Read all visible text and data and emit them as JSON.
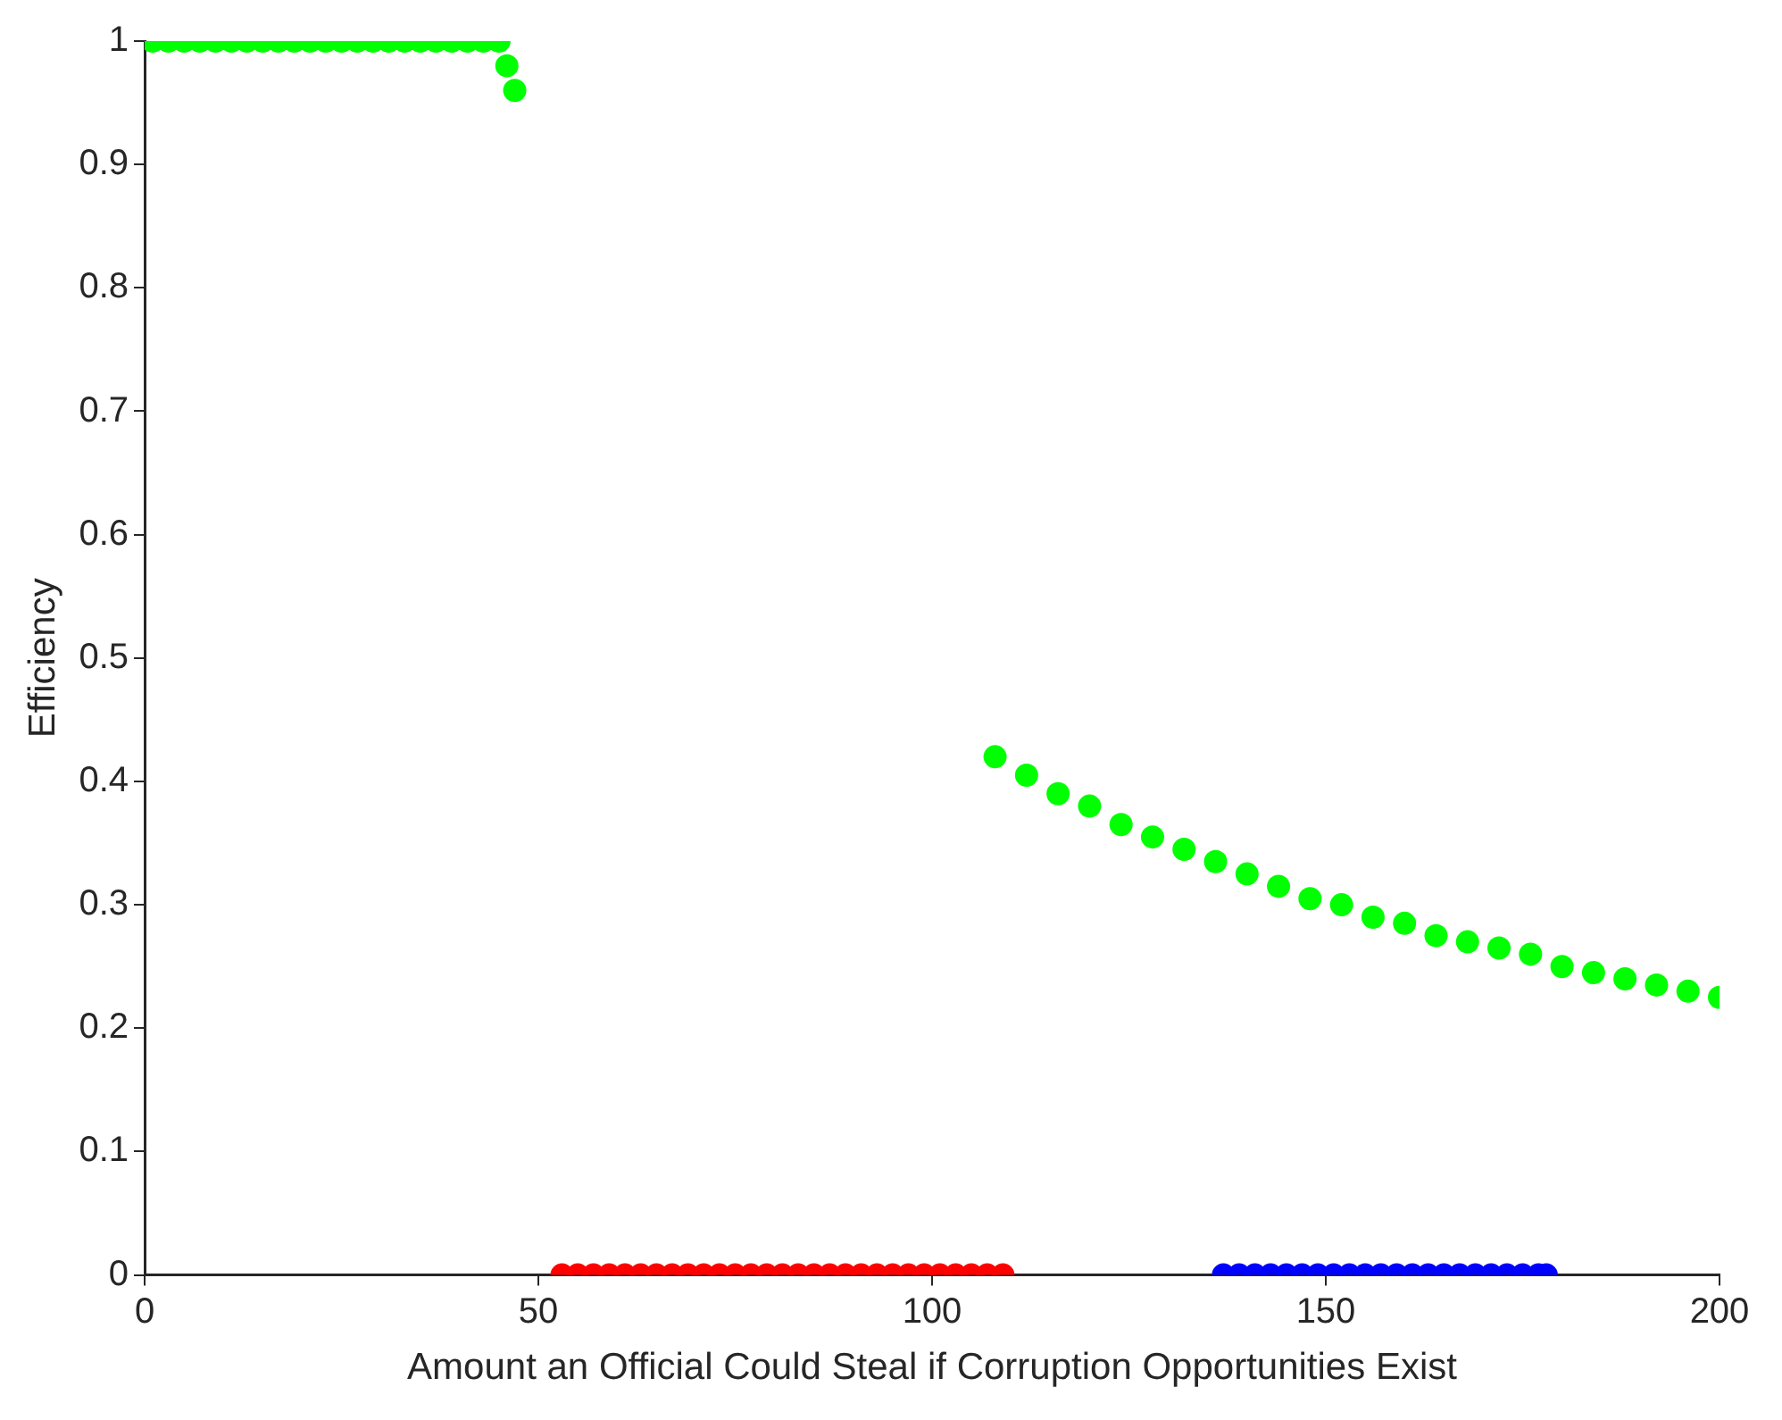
{
  "chart_data": {
    "type": "scatter",
    "xlabel": "Amount an Official Could Steal if Corruption Opportunities Exist",
    "ylabel": "Efficiency",
    "xlim": [
      0,
      200
    ],
    "xticks": [
      0,
      50,
      100,
      150,
      200
    ],
    "ylim": [
      0,
      1
    ],
    "yticks": [
      0,
      0.1,
      0.2,
      0.3,
      0.4,
      0.5,
      0.6,
      0.7,
      0.8,
      0.9,
      1
    ],
    "grid": false,
    "legend": false,
    "marker": "circle",
    "series": [
      {
        "color": "#00ff00",
        "x": [
          1,
          3,
          5,
          7,
          9,
          11,
          13,
          15,
          17,
          19,
          21,
          23,
          25,
          27,
          29,
          31,
          33,
          35,
          37,
          39,
          41,
          43,
          45,
          46,
          47,
          108,
          112,
          116,
          120,
          124,
          128,
          132,
          136,
          140,
          144,
          148,
          152,
          156,
          160,
          164,
          168,
          172,
          176,
          180,
          184,
          188,
          192,
          196,
          200
        ],
        "values": [
          1,
          1,
          1,
          1,
          1,
          1,
          1,
          1,
          1,
          1,
          1,
          1,
          1,
          1,
          1,
          1,
          1,
          1,
          1,
          1,
          1,
          1,
          1,
          0.98,
          0.96,
          0.42,
          0.405,
          0.39,
          0.38,
          0.365,
          0.355,
          0.345,
          0.335,
          0.325,
          0.315,
          0.305,
          0.3,
          0.29,
          0.285,
          0.275,
          0.27,
          0.265,
          0.26,
          0.25,
          0.245,
          0.24,
          0.235,
          0.23,
          0.225
        ]
      },
      {
        "color": "#ff0000",
        "x": [
          53,
          55,
          57,
          59,
          61,
          63,
          65,
          67,
          69,
          71,
          73,
          75,
          77,
          79,
          81,
          83,
          85,
          87,
          89,
          91,
          93,
          95,
          97,
          99,
          101,
          103,
          105,
          107,
          109
        ],
        "values": [
          0,
          0,
          0,
          0,
          0,
          0,
          0,
          0,
          0,
          0,
          0,
          0,
          0,
          0,
          0,
          0,
          0,
          0,
          0,
          0,
          0,
          0,
          0,
          0,
          0,
          0,
          0,
          0,
          0
        ]
      },
      {
        "color": "#0000ff",
        "x": [
          137,
          139,
          141,
          143,
          145,
          147,
          149,
          151,
          153,
          155,
          157,
          159,
          161,
          163,
          165,
          167,
          169,
          171,
          173,
          175,
          177,
          178
        ],
        "values": [
          0,
          0,
          0,
          0,
          0,
          0,
          0,
          0,
          0,
          0,
          0,
          0,
          0,
          0,
          0,
          0,
          0,
          0,
          0,
          0,
          0,
          0
        ]
      }
    ]
  }
}
